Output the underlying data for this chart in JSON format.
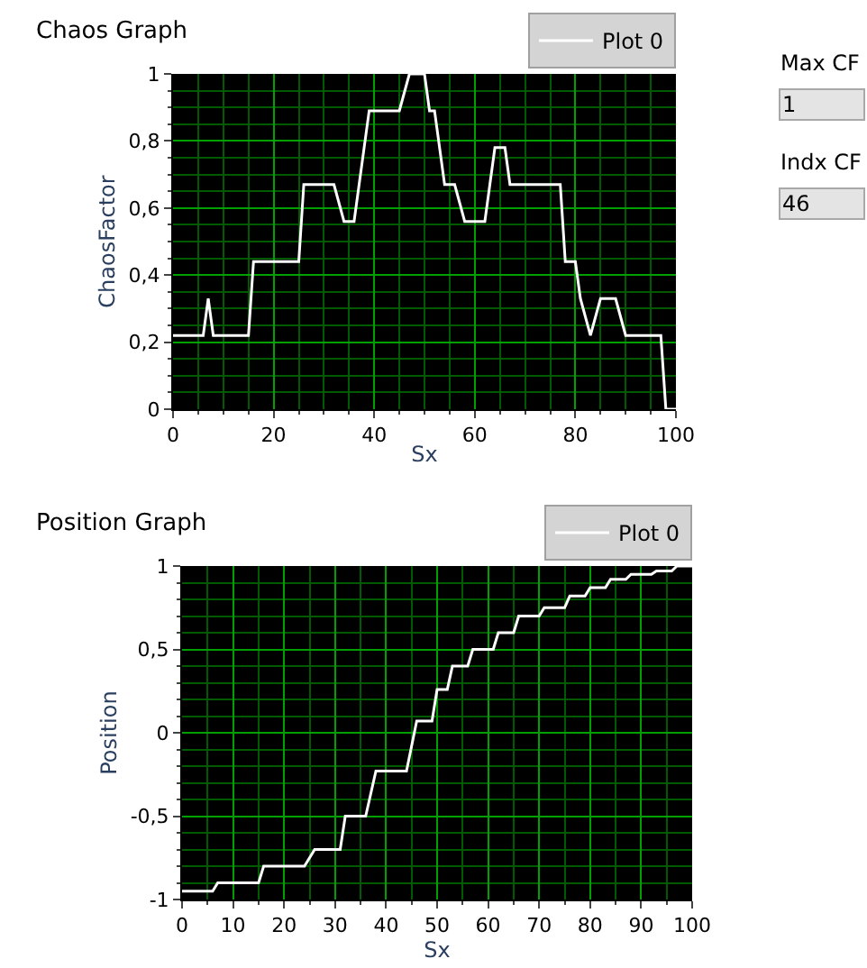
{
  "chart_data": [
    {
      "type": "line",
      "title": "Chaos Graph",
      "xlabel": "Sx",
      "ylabel": "ChaosFactor",
      "legend": "top right",
      "grid": true,
      "series": [
        {
          "name": "Plot 0",
          "color": "#ffffff",
          "x": [
            0,
            6,
            7,
            8,
            15,
            16,
            25,
            26,
            32,
            34,
            36,
            37,
            38,
            39,
            45,
            47,
            50,
            51,
            52,
            54,
            56,
            58,
            62,
            63,
            64,
            66,
            67,
            77,
            78,
            80,
            81,
            83,
            85,
            88,
            90,
            97,
            98,
            100
          ],
          "values": [
            0.22,
            0.22,
            0.33,
            0.22,
            0.22,
            0.44,
            0.44,
            0.67,
            0.67,
            0.56,
            0.56,
            0.67,
            0.78,
            0.89,
            0.89,
            1,
            1,
            0.89,
            0.89,
            0.67,
            0.67,
            0.56,
            0.56,
            0.67,
            0.78,
            0.78,
            0.67,
            0.67,
            0.44,
            0.44,
            0.33,
            0.22,
            0.33,
            0.33,
            0.22,
            0.22,
            0,
            0
          ]
        }
      ],
      "xlim": [
        0,
        100
      ],
      "xticks": [
        0,
        {
          "value": 5,
          "label": null
        },
        {
          "value": 10,
          "label": null
        },
        {
          "value": 15,
          "label": null
        },
        20,
        {
          "value": 25,
          "label": null
        },
        {
          "value": 30,
          "label": null
        },
        {
          "value": 35,
          "label": null
        },
        40,
        {
          "value": 45,
          "label": null
        },
        {
          "value": 50,
          "label": null
        },
        {
          "value": 55,
          "label": null
        },
        60,
        {
          "value": 65,
          "label": null
        },
        {
          "value": 70,
          "label": null
        },
        {
          "value": 75,
          "label": null
        },
        80,
        {
          "value": 85,
          "label": null
        },
        {
          "value": 90,
          "label": null
        },
        {
          "value": 95,
          "label": null
        },
        100
      ],
      "ylim": [
        0,
        1
      ],
      "yticks": [
        0,
        {
          "value": 0.05,
          "label": null
        },
        {
          "value": 0.1,
          "label": null
        },
        {
          "value": 0.15,
          "label": null
        },
        {
          "value": 0.2,
          "label": "0,2"
        },
        {
          "value": 0.25,
          "label": null
        },
        {
          "value": 0.3,
          "label": null
        },
        {
          "value": 0.35,
          "label": null
        },
        {
          "value": 0.4,
          "label": "0,4"
        },
        {
          "value": 0.45,
          "label": null
        },
        {
          "value": 0.5,
          "label": null
        },
        {
          "value": 0.55,
          "label": null
        },
        {
          "value": 0.6,
          "label": "0,6"
        },
        {
          "value": 0.65,
          "label": null
        },
        {
          "value": 0.7,
          "label": null
        },
        {
          "value": 0.75,
          "label": null
        },
        {
          "value": 0.8,
          "label": "0,8"
        },
        {
          "value": 0.85,
          "label": null
        },
        {
          "value": 0.9,
          "label": null
        },
        {
          "value": 0.95,
          "label": null
        },
        1
      ]
    },
    {
      "type": "line",
      "title": "Position Graph",
      "xlabel": "Sx",
      "ylabel": "Position",
      "legend": "top right",
      "grid": true,
      "series": [
        {
          "name": "Plot 0",
          "color": "#ffffff",
          "x": [
            0,
            6,
            7,
            15,
            16,
            24,
            26,
            31,
            32,
            36,
            38,
            44,
            46,
            49,
            50,
            52,
            53,
            56,
            57,
            61,
            62,
            65,
            66,
            70,
            71,
            75,
            76,
            79,
            80,
            83,
            84,
            87,
            88,
            92,
            93,
            96,
            97,
            100
          ],
          "values": [
            -0.95,
            -0.95,
            -0.9,
            -0.9,
            -0.8,
            -0.8,
            -0.7,
            -0.7,
            -0.5,
            -0.5,
            -0.23,
            -0.23,
            0.07,
            0.07,
            0.26,
            0.26,
            0.4,
            0.4,
            0.5,
            0.5,
            0.6,
            0.6,
            0.7,
            0.7,
            0.75,
            0.75,
            0.82,
            0.82,
            0.87,
            0.87,
            0.92,
            0.92,
            0.95,
            0.95,
            0.97,
            0.97,
            1,
            1
          ]
        }
      ],
      "xlim": [
        0,
        100
      ],
      "xticks": [
        0,
        {
          "value": 5,
          "label": null
        },
        10,
        {
          "value": 15,
          "label": null
        },
        20,
        {
          "value": 25,
          "label": null
        },
        30,
        {
          "value": 35,
          "label": null
        },
        40,
        {
          "value": 45,
          "label": null
        },
        50,
        {
          "value": 55,
          "label": null
        },
        60,
        {
          "value": 65,
          "label": null
        },
        70,
        {
          "value": 75,
          "label": null
        },
        80,
        {
          "value": 85,
          "label": null
        },
        90,
        {
          "value": 95,
          "label": null
        },
        100
      ],
      "ylim": [
        -1,
        1
      ],
      "yticks": [
        -1,
        {
          "value": -0.9,
          "label": null
        },
        {
          "value": -0.8,
          "label": null
        },
        {
          "value": -0.7,
          "label": null
        },
        {
          "value": -0.6,
          "label": null
        },
        {
          "value": -0.5,
          "label": "-0,5"
        },
        {
          "value": -0.4,
          "label": null
        },
        {
          "value": -0.3,
          "label": null
        },
        {
          "value": -0.2,
          "label": null
        },
        {
          "value": -0.1,
          "label": null
        },
        0,
        {
          "value": 0.1,
          "label": null
        },
        {
          "value": 0.2,
          "label": null
        },
        {
          "value": 0.3,
          "label": null
        },
        {
          "value": 0.4,
          "label": null
        },
        {
          "value": 0.5,
          "label": "0,5"
        },
        {
          "value": 0.6,
          "label": null
        },
        {
          "value": 0.7,
          "label": null
        },
        {
          "value": 0.8,
          "label": null
        },
        {
          "value": 0.9,
          "label": null
        },
        1
      ]
    },
    {
      "type": "other",
      "annotations": [
        "Max CF",
        "1",
        "Indx CF",
        "46"
      ]
    }
  ]
}
